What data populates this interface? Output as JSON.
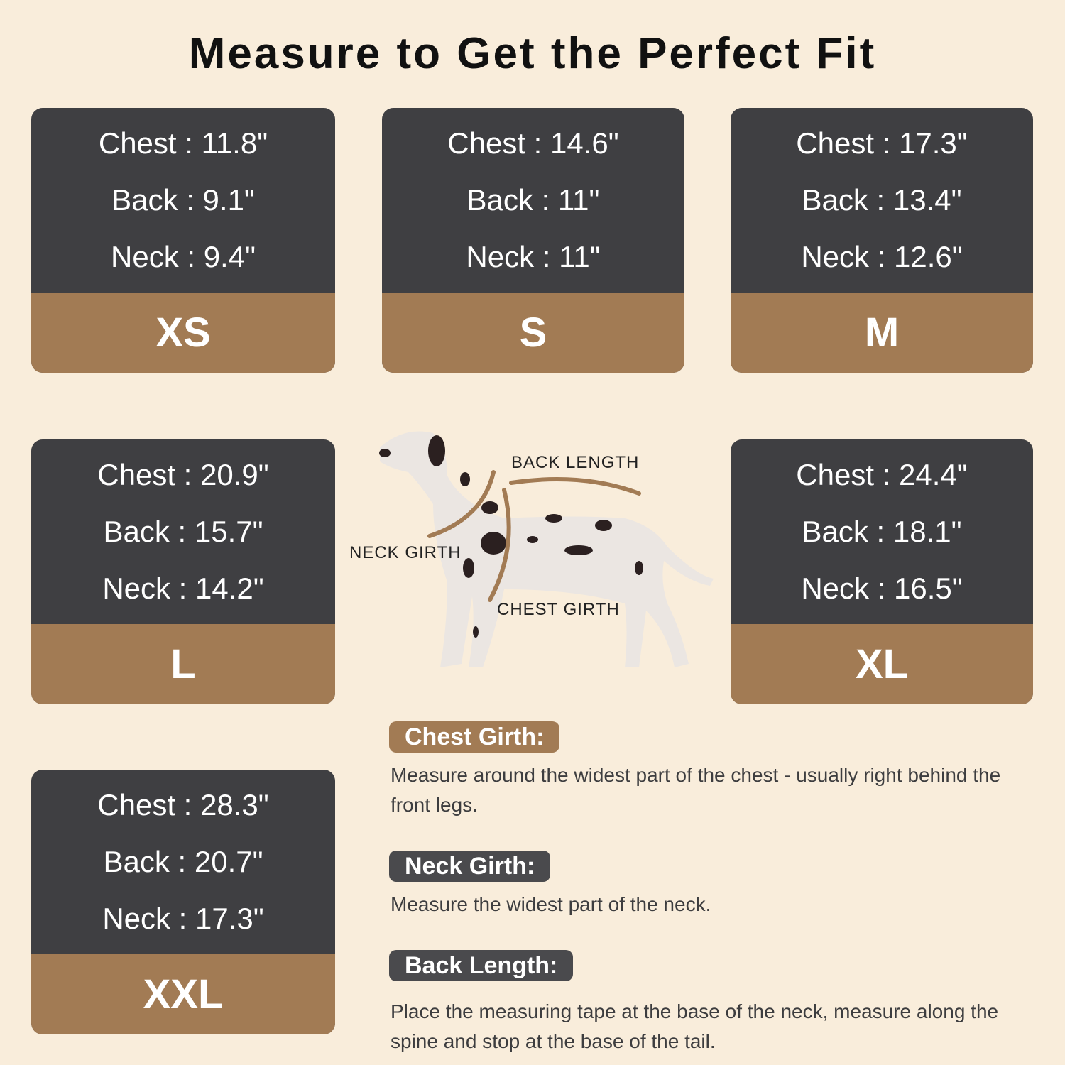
{
  "title": "Measure to Get the Perfect Fit",
  "colors": {
    "background": "#f9eddb",
    "card_dark": "#3f3f42",
    "accent_brown": "#a27b54"
  },
  "sizes": [
    {
      "size": "XS",
      "chest": "Chest : 11.8\"",
      "back": "Back : 9.1\"",
      "neck": "Neck : 9.4\""
    },
    {
      "size": "S",
      "chest": "Chest : 14.6\"",
      "back": "Back : 11\"",
      "neck": "Neck : 11\""
    },
    {
      "size": "M",
      "chest": "Chest : 17.3\"",
      "back": "Back : 13.4\"",
      "neck": "Neck : 12.6\""
    },
    {
      "size": "L",
      "chest": "Chest : 20.9\"",
      "back": "Back : 15.7\"",
      "neck": "Neck : 14.2\""
    },
    {
      "size": "XL",
      "chest": "Chest : 24.4\"",
      "back": "Back : 18.1\"",
      "neck": "Neck : 16.5\""
    },
    {
      "size": "XXL",
      "chest": "Chest : 28.3\"",
      "back": "Back : 20.7\"",
      "neck": "Neck : 17.3\""
    }
  ],
  "diagram": {
    "back_length": "BACK LENGTH",
    "neck_girth": "NECK GIRTH",
    "chest_girth": "CHEST GIRTH"
  },
  "instructions": [
    {
      "label": "Chest Girth:",
      "text": "Measure around the widest part of the chest - usually right behind the front legs."
    },
    {
      "label": "Neck Girth:",
      "text": "Measure the widest part of the neck."
    },
    {
      "label": "Back Length:",
      "text": "Place the measuring tape at the base of the neck, measure along the spine and stop at the base of the tail."
    }
  ]
}
